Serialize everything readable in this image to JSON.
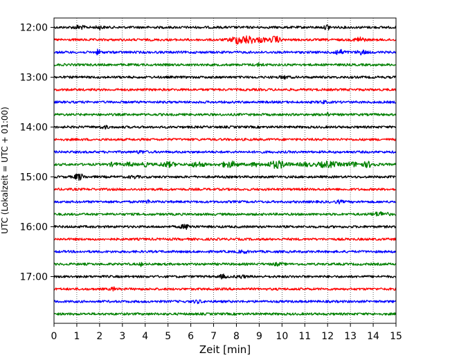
{
  "chart_data": {
    "type": "line",
    "title": "",
    "xlabel": "Zeit  [min]",
    "ylabel": "UTC (Lokalzeit = UTC + 01:00)",
    "xlim": [
      0,
      15
    ],
    "xticks": [
      "0",
      "1",
      "2",
      "3",
      "4",
      "5",
      "6",
      "7",
      "8",
      "9",
      "10",
      "11",
      "12",
      "13",
      "14",
      "15"
    ],
    "y_tick_labels": [
      "12:00",
      "13:00",
      "14:00",
      "15:00",
      "16:00",
      "17:00"
    ],
    "grid": "vertical dotted",
    "trace_colors": [
      "#000000",
      "#ff0000",
      "#0000ff",
      "#008000"
    ],
    "traces": [
      {
        "start": "12:00",
        "bursts": [
          [
            1.1,
            0.25,
            2.2
          ],
          [
            2.0,
            0.15,
            2.0
          ],
          [
            12.0,
            0.12,
            3.5
          ]
        ]
      },
      {
        "start": "12:15",
        "bursts": [
          [
            8.1,
            0.35,
            5.0
          ],
          [
            8.6,
            0.25,
            4.0
          ],
          [
            9.1,
            0.2,
            3.0
          ],
          [
            9.7,
            0.2,
            4.5
          ],
          [
            13.4,
            0.2,
            3.5
          ]
        ]
      },
      {
        "start": "12:30",
        "bursts": [
          [
            1.95,
            0.1,
            3.5
          ],
          [
            12.5,
            0.25,
            3.0
          ],
          [
            13.5,
            0.2,
            2.5
          ]
        ]
      },
      {
        "start": "12:45",
        "bursts": [
          [
            9.0,
            0.2,
            1.5
          ]
        ]
      },
      {
        "start": "13:00",
        "bursts": [
          [
            10.1,
            0.2,
            1.5
          ]
        ]
      },
      {
        "start": "13:15",
        "bursts": []
      },
      {
        "start": "13:30",
        "bursts": [
          [
            11.8,
            0.15,
            1.5
          ]
        ]
      },
      {
        "start": "13:45",
        "bursts": [
          [
            11.95,
            0.08,
            2.8
          ]
        ]
      },
      {
        "start": "14:00",
        "bursts": [
          [
            2.2,
            0.2,
            1.4
          ]
        ]
      },
      {
        "start": "14:15",
        "bursts": []
      },
      {
        "start": "14:30",
        "bursts": [
          [
            3.8,
            0.2,
            1.4
          ]
        ]
      },
      {
        "start": "14:45",
        "bursts": [
          [
            2.6,
            0.2,
            2.0
          ],
          [
            3.3,
            0.2,
            2.2
          ],
          [
            4.0,
            0.2,
            2.0
          ],
          [
            5.0,
            0.35,
            3.0
          ],
          [
            6.3,
            0.3,
            3.2
          ],
          [
            7.7,
            0.4,
            3.5
          ],
          [
            8.8,
            0.2,
            2.2
          ],
          [
            9.8,
            0.45,
            4.5
          ],
          [
            11.0,
            0.25,
            2.2
          ],
          [
            12.0,
            0.5,
            3.5
          ],
          [
            13.1,
            0.3,
            2.5
          ],
          [
            13.8,
            0.3,
            3.2
          ]
        ]
      },
      {
        "start": "15:00",
        "bursts": [
          [
            1.1,
            0.2,
            4.2
          ],
          [
            3.5,
            0.2,
            1.4
          ]
        ]
      },
      {
        "start": "15:15",
        "bursts": []
      },
      {
        "start": "15:30",
        "bursts": [
          [
            4.1,
            0.12,
            2.0
          ],
          [
            12.5,
            0.15,
            1.5
          ]
        ]
      },
      {
        "start": "15:45",
        "bursts": [
          [
            14.3,
            0.35,
            2.5
          ]
        ]
      },
      {
        "start": "16:00",
        "bursts": [
          [
            5.8,
            0.25,
            2.6
          ]
        ]
      },
      {
        "start": "16:15",
        "bursts": []
      },
      {
        "start": "16:30",
        "bursts": [
          [
            8.3,
            0.2,
            1.5
          ]
        ]
      },
      {
        "start": "16:45",
        "bursts": [
          [
            3.85,
            0.08,
            2.5
          ],
          [
            9.8,
            0.2,
            1.4
          ]
        ]
      },
      {
        "start": "17:00",
        "bursts": [
          [
            7.4,
            0.15,
            2.2
          ],
          [
            8.2,
            0.2,
            1.6
          ]
        ]
      },
      {
        "start": "17:15",
        "bursts": [
          [
            2.6,
            0.1,
            2.2
          ]
        ]
      },
      {
        "start": "17:30",
        "bursts": [
          [
            6.3,
            0.2,
            1.5
          ]
        ]
      },
      {
        "start": "17:45",
        "bursts": []
      }
    ]
  }
}
